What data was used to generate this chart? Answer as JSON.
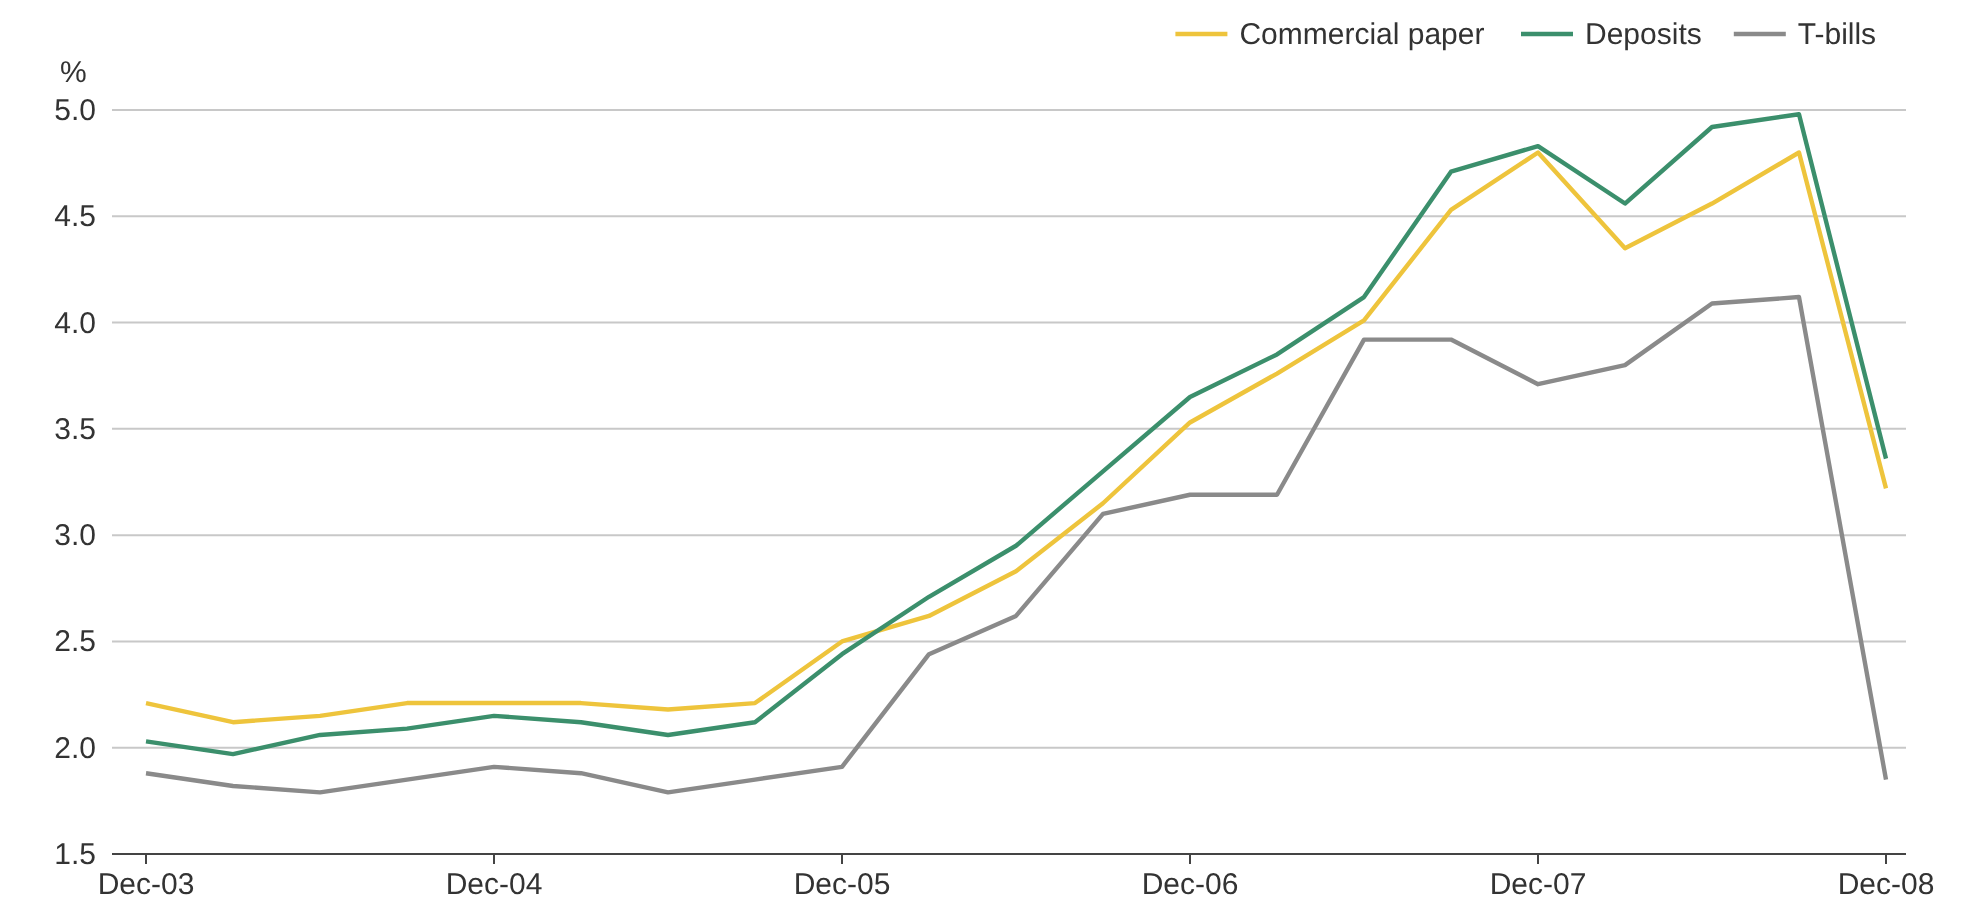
{
  "chart_data": {
    "type": "line",
    "ylabel": "%",
    "categories": [
      "Dec-03",
      null,
      null,
      null,
      "Dec-04",
      null,
      null,
      null,
      "Dec-05",
      null,
      null,
      null,
      "Dec-06",
      null,
      null,
      null,
      "Dec-07",
      null,
      null,
      null,
      "Dec-08"
    ],
    "series": [
      {
        "name": "Commercial paper",
        "color": "#eec43c",
        "values": [
          2.21,
          2.12,
          2.15,
          2.21,
          2.21,
          2.21,
          2.18,
          2.21,
          2.5,
          2.62,
          2.83,
          3.15,
          3.53,
          3.76,
          4.01,
          4.53,
          4.8,
          4.35,
          4.56,
          4.8,
          3.22
        ]
      },
      {
        "name": "Deposits",
        "color": "#3b8f6c",
        "values": [
          2.03,
          1.97,
          2.06,
          2.09,
          2.15,
          2.12,
          2.06,
          2.12,
          2.44,
          2.71,
          2.95,
          3.3,
          3.65,
          3.85,
          4.12,
          4.71,
          4.83,
          4.56,
          4.92,
          4.98,
          3.36
        ]
      },
      {
        "name": "T-bills",
        "color": "#8a8a8a",
        "values": [
          1.88,
          1.82,
          1.79,
          1.85,
          1.91,
          1.88,
          1.79,
          1.85,
          1.91,
          2.44,
          2.62,
          3.1,
          3.19,
          3.19,
          3.92,
          3.92,
          3.71,
          3.8,
          4.09,
          4.12,
          1.85
        ]
      }
    ],
    "ylim": [
      1.5,
      5.0
    ],
    "yticks": [
      {
        "value": 1.5,
        "label": "1.5"
      },
      {
        "value": 2,
        "label": "2.0"
      },
      {
        "value": 2.5,
        "label": "2.5"
      },
      {
        "value": 3,
        "label": "3.0"
      },
      {
        "value": 3.5,
        "label": "3.5"
      },
      {
        "value": 4,
        "label": "4.0"
      },
      {
        "value": 4.5,
        "label": "4.5"
      },
      {
        "value": 5,
        "label": "5.0"
      }
    ],
    "grid": "y",
    "legend": "top right",
    "line_style": "solid"
  }
}
